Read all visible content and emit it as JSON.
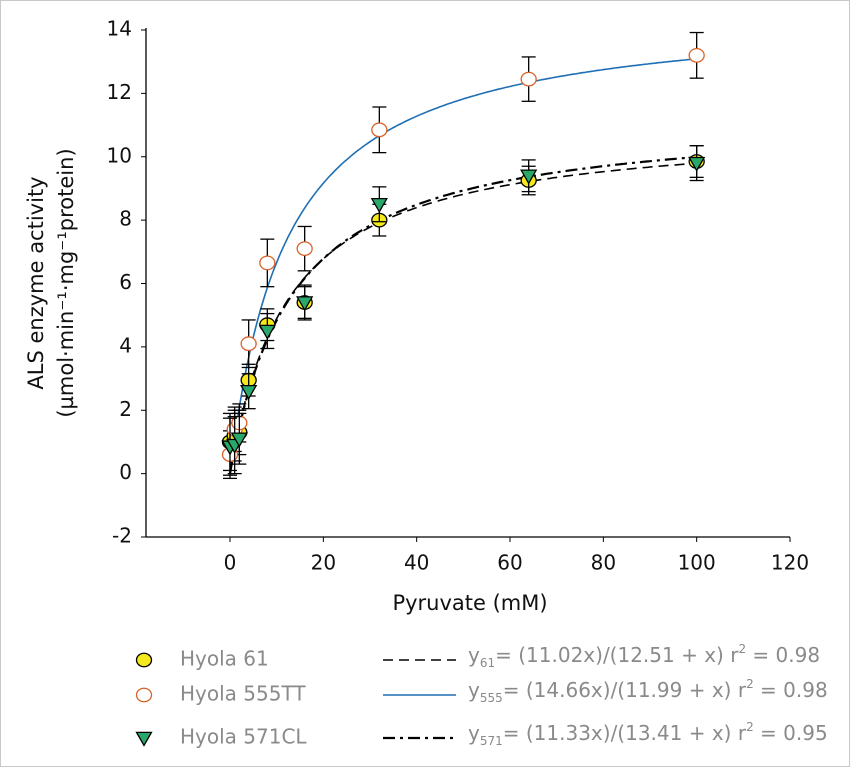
{
  "chart_data": {
    "type": "scatter",
    "xlabel": "Pyruvate (mM)",
    "ylabel": [
      "ALS enzyme activity",
      "(µmol·min⁻¹·mg⁻¹protein)"
    ],
    "xlim": [
      -18,
      120
    ],
    "ylim": [
      -2,
      14
    ],
    "xticks": [
      0,
      20,
      40,
      60,
      80,
      100,
      120
    ],
    "yticks": [
      -2,
      0,
      2,
      4,
      6,
      8,
      10,
      12,
      14
    ],
    "series": [
      {
        "name": "Hyola 61",
        "color": "#f5e81c",
        "marker": "circle",
        "x": [
          0,
          1,
          2,
          4,
          8,
          16,
          32,
          64,
          100
        ],
        "values": [
          1.0,
          1.2,
          1.3,
          2.95,
          4.7,
          5.4,
          8.0,
          9.25,
          9.85
        ],
        "errors": [
          0.9,
          0.8,
          0.7,
          0.5,
          0.5,
          0.5,
          0.5,
          0.45,
          0.5
        ],
        "fit": {
          "vmax": 11.02,
          "km": 12.51,
          "r2": 0.98,
          "line_color": "#000000",
          "dash": "dashed",
          "label": {
            "y": "y",
            "subscript": "61",
            "body": "= (11.02x)/(12.51 + x) r",
            "superscript": "2",
            "tail": " = 0.98"
          }
        }
      },
      {
        "name": "Hyola 555TT",
        "color": "#ffffff",
        "edge": "#d9622b",
        "marker": "circle",
        "x": [
          0,
          1,
          2,
          4,
          8,
          16,
          32,
          64,
          100
        ],
        "values": [
          0.6,
          1.4,
          1.6,
          4.1,
          6.65,
          7.1,
          10.85,
          12.45,
          13.2
        ],
        "errors": [
          0.75,
          0.7,
          0.6,
          0.75,
          0.75,
          0.7,
          0.72,
          0.7,
          0.72
        ],
        "fit": {
          "vmax": 14.66,
          "km": 11.99,
          "r2": 0.98,
          "line_color": "#1f6fb4",
          "dash": "solid",
          "label": {
            "y": "y",
            "subscript": "555",
            "body": "= (14.66x)/(11.99 + x) r",
            "superscript": "2",
            "tail": " = 0.98"
          }
        }
      },
      {
        "name": "Hyola 571CL",
        "color": "#2aa86a",
        "marker": "triangle",
        "x": [
          0,
          1,
          2,
          4,
          8,
          16,
          32,
          64,
          100
        ],
        "values": [
          0.85,
          0.9,
          1.1,
          2.6,
          4.5,
          5.4,
          8.5,
          9.4,
          9.8
        ],
        "errors": [
          0.9,
          0.9,
          0.8,
          0.55,
          0.55,
          0.55,
          0.55,
          0.5,
          0.55
        ],
        "fit": {
          "vmax": 11.33,
          "km": 13.41,
          "r2": 0.95,
          "line_color": "#000000",
          "dash": "dashdot",
          "label": {
            "y": "y",
            "subscript": "571",
            "body": "= (11.33x)/(13.41 + x) r",
            "superscript": "2",
            "tail": " = 0.95"
          }
        }
      }
    ]
  }
}
